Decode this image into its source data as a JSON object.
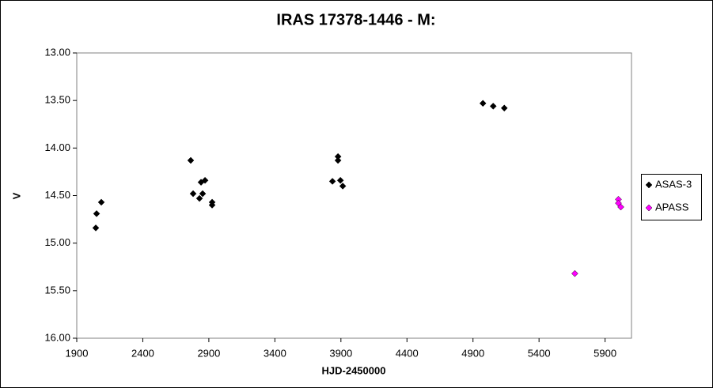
{
  "chart_data": {
    "type": "scatter",
    "title": "IRAS 17378-1446  - M:",
    "x_label": "HJD-2450000",
    "y_label": "V",
    "xlim": [
      1900,
      6100
    ],
    "xticks": [
      1900,
      2400,
      2900,
      3400,
      3900,
      4400,
      4900,
      5400,
      5900
    ],
    "ylim": [
      16,
      13
    ],
    "yticks": [
      {
        "value": 13,
        "label": "13.00"
      },
      {
        "value": 13.5,
        "label": "13.50"
      },
      {
        "value": 14,
        "label": "14.00"
      },
      {
        "value": 14.5,
        "label": "14.50"
      },
      {
        "value": 15,
        "label": "15.00"
      },
      {
        "value": 15.5,
        "label": "15.50"
      },
      {
        "value": 16,
        "label": "16.00"
      }
    ],
    "legend": "right",
    "series": [
      {
        "name": "ASAS-3",
        "color": "#000000",
        "x": [
          2044,
          2050,
          2086,
          2763,
          2781,
          2829,
          2841,
          2853,
          2871,
          2925,
          2925,
          3836,
          3878,
          3878,
          3896,
          3914,
          4975,
          5053,
          5137
        ],
        "values": [
          14.84,
          14.69,
          14.57,
          14.13,
          14.48,
          14.53,
          14.36,
          14.48,
          14.34,
          14.57,
          14.6,
          14.35,
          14.09,
          14.13,
          14.34,
          14.4,
          13.53,
          13.56,
          13.58
        ]
      },
      {
        "name": "APASS",
        "color": "#ff00ff",
        "x": [
          5671,
          6001,
          6001,
          6019
        ],
        "values": [
          15.32,
          14.54,
          14.58,
          14.62
        ]
      }
    ]
  }
}
